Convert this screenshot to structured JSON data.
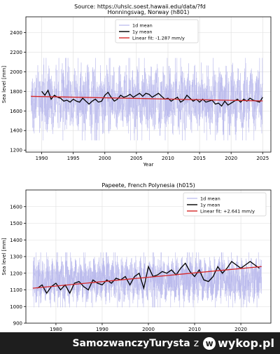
{
  "source_line": "Source: https://uhslc.soest.hawaii.edu/data/?fd",
  "watermark": {
    "user": "SamozwanczyTurysta",
    "sep": "z",
    "logo_glyph": "w",
    "brand": "wykop.pl"
  },
  "colors": {
    "d1": "#b8b8ec",
    "y1": "#000000",
    "fit": "#d62728",
    "grid": "#dddddd"
  },
  "chart_data": [
    {
      "type": "line",
      "title": "Honningsvag, Norway (h801)",
      "xlabel": "Year",
      "ylabel": "Sea level [mm]",
      "xlim": [
        1987.5,
        2026.3
      ],
      "ylim": [
        1180,
        2560
      ],
      "xticks": [
        1990,
        1995,
        2000,
        2005,
        2010,
        2015,
        2020,
        2025
      ],
      "yticks": [
        1200,
        1400,
        1600,
        1800,
        2000,
        2200,
        2400
      ],
      "grid": true,
      "legend_position": "top-center",
      "legend": [
        "1d mean",
        "1y mean",
        "Linear fit: -1.287 mm/y"
      ],
      "series": [
        {
          "name": "1d mean",
          "band": {
            "start": 1988.3,
            "end": 2025.0,
            "center": 1720,
            "spread": 280,
            "peak": 2480,
            "trough": 1260
          }
        },
        {
          "name": "1y mean",
          "x": [
            1990.0,
            1990.5,
            1991.0,
            1991.5,
            1992.0,
            1992.5,
            1993.0,
            1993.5,
            1994.0,
            1994.5,
            1995.0,
            1995.5,
            1996.0,
            1996.5,
            1997.0,
            1997.5,
            1998.0,
            1998.5,
            1999.0,
            1999.5,
            2000.0,
            2000.5,
            2001.0,
            2001.5,
            2002.0,
            2002.5,
            2003.0,
            2003.5,
            2004.0,
            2004.5,
            2005.0,
            2005.5,
            2006.0,
            2006.5,
            2007.0,
            2007.5,
            2008.0,
            2008.5,
            2009.0,
            2009.5,
            2010.0,
            2010.5,
            2011.0,
            2011.5,
            2012.0,
            2012.5,
            2013.0,
            2013.5,
            2014.0,
            2014.5,
            2015.0,
            2015.5,
            2016.0,
            2016.5,
            2017.0,
            2017.5,
            2018.0,
            2018.5,
            2019.0,
            2019.5,
            2020.0,
            2020.5,
            2021.0,
            2021.5,
            2022.0,
            2022.5,
            2023.0,
            2023.5,
            2024.0,
            2024.5,
            2025.0
          ],
          "values": [
            1800,
            1760,
            1810,
            1720,
            1760,
            1740,
            1730,
            1700,
            1710,
            1690,
            1720,
            1700,
            1690,
            1730,
            1700,
            1670,
            1700,
            1720,
            1690,
            1700,
            1760,
            1790,
            1740,
            1700,
            1720,
            1760,
            1740,
            1750,
            1770,
            1740,
            1760,
            1780,
            1750,
            1780,
            1770,
            1740,
            1760,
            1780,
            1750,
            1720,
            1730,
            1700,
            1720,
            1740,
            1690,
            1710,
            1760,
            1730,
            1700,
            1720,
            1690,
            1720,
            1690,
            1700,
            1710,
            1670,
            1680,
            1650,
            1700,
            1660,
            1680,
            1700,
            1720,
            1690,
            1720,
            1700,
            1730,
            1710,
            1700,
            1690,
            1740
          ]
        },
        {
          "name": "Linear fit: -1.287 mm/y",
          "x": [
            1988.3,
            2025.0
          ],
          "values": [
            1749,
            1702
          ]
        }
      ]
    },
    {
      "type": "line",
      "title": "Papeete, French Polynesia (h015)",
      "xlabel": "Year",
      "ylabel": "Sea level [mm]",
      "xlim": [
        1973.5,
        2026.5
      ],
      "ylim": [
        900,
        1700
      ],
      "xticks": [
        1980,
        1990,
        2000,
        2010,
        2020
      ],
      "yticks": [
        900,
        1000,
        1100,
        1200,
        1300,
        1400,
        1500,
        1600
      ],
      "grid": true,
      "legend_position": "top-right",
      "legend": [
        "1d mean",
        "1y mean",
        "Linear fit: +2.641 mm/y"
      ],
      "series": [
        {
          "name": "1d mean",
          "band": {
            "start": 1975.0,
            "end": 2024.5,
            "center": 1160,
            "spread": 110,
            "peak": 1370,
            "trough": 990
          }
        },
        {
          "name": "1y mean",
          "x": [
            1976.0,
            1977.0,
            1978.0,
            1979.0,
            1980.0,
            1981.0,
            1982.0,
            1983.0,
            1984.0,
            1985.0,
            1986.0,
            1987.0,
            1988.0,
            1989.0,
            1990.0,
            1991.0,
            1992.0,
            1993.0,
            1994.0,
            1995.0,
            1996.0,
            1997.0,
            1998.0,
            1999.0,
            2000.0,
            2001.0,
            2002.0,
            2003.0,
            2004.0,
            2005.0,
            2006.0,
            2007.0,
            2008.0,
            2009.0,
            2010.0,
            2011.0,
            2012.0,
            2013.0,
            2014.0,
            2015.0,
            2016.0,
            2017.0,
            2018.0,
            2019.0,
            2020.0,
            2021.0,
            2022.0,
            2023.0,
            2024.0
          ],
          "values": [
            1110,
            1130,
            1080,
            1120,
            1140,
            1100,
            1130,
            1080,
            1140,
            1150,
            1120,
            1100,
            1160,
            1140,
            1130,
            1160,
            1140,
            1170,
            1160,
            1180,
            1130,
            1180,
            1200,
            1110,
            1240,
            1180,
            1190,
            1210,
            1200,
            1220,
            1190,
            1230,
            1260,
            1210,
            1180,
            1220,
            1160,
            1150,
            1180,
            1240,
            1200,
            1230,
            1270,
            1250,
            1230,
            1250,
            1270,
            1250,
            1230
          ]
        },
        {
          "name": "Linear fit: +2.641 mm/y",
          "x": [
            1975.0,
            2024.5
          ],
          "values": [
            1110,
            1240
          ]
        }
      ]
    }
  ]
}
